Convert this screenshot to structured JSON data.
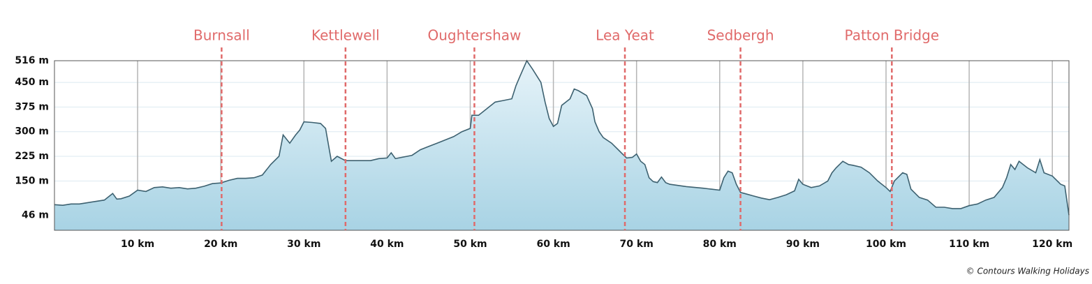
{
  "chart_data": {
    "type": "area",
    "x": [
      0,
      1,
      2,
      3,
      4,
      5,
      6,
      7,
      7.5,
      8,
      9,
      10,
      11,
      12,
      13,
      14,
      15,
      16,
      17,
      18,
      19,
      20,
      21,
      22,
      23,
      24,
      25,
      26,
      27,
      27.5,
      28.3,
      29,
      29.5,
      30,
      31,
      32,
      32.6,
      33.3,
      34,
      35,
      36,
      38,
      39,
      40,
      40.5,
      41,
      43,
      44,
      45,
      46,
      47,
      48,
      49,
      50,
      50.2,
      51,
      52,
      53,
      54,
      55,
      55.5,
      56,
      56.8,
      57.5,
      58.5,
      59,
      59.5,
      60,
      60.5,
      61,
      62,
      62.5,
      63,
      64,
      64.7,
      65,
      65.5,
      66,
      67,
      68,
      68.8,
      69.5,
      70,
      70.5,
      71,
      71.5,
      72,
      72.5,
      73,
      73.5,
      74,
      76,
      78,
      79,
      80,
      80.5,
      81,
      81.5,
      82,
      82.5,
      83,
      84,
      85,
      86,
      87,
      88,
      89,
      89.5,
      90,
      91,
      92,
      93,
      93.5,
      94,
      94.8,
      95.5,
      96,
      97,
      98,
      99,
      100,
      100.5,
      101,
      102,
      102.5,
      103,
      104,
      105,
      106,
      107,
      108,
      109,
      110,
      111,
      112,
      113,
      114,
      114.5,
      115,
      115.5,
      116,
      117,
      118,
      118.5,
      119,
      120,
      121,
      121.5,
      122
    ],
    "values": [
      78,
      76,
      80,
      80,
      84,
      88,
      92,
      112,
      95,
      96,
      104,
      122,
      118,
      130,
      132,
      128,
      130,
      126,
      128,
      134,
      142,
      144,
      152,
      158,
      158,
      160,
      168,
      200,
      225,
      290,
      265,
      290,
      305,
      330,
      328,
      325,
      310,
      210,
      225,
      212,
      212,
      212,
      218,
      220,
      236,
      218,
      228,
      245,
      255,
      265,
      275,
      285,
      300,
      310,
      350,
      350,
      370,
      390,
      395,
      400,
      440,
      470,
      516,
      490,
      450,
      390,
      340,
      316,
      325,
      380,
      400,
      430,
      425,
      410,
      370,
      330,
      300,
      282,
      265,
      240,
      220,
      222,
      232,
      210,
      200,
      160,
      148,
      145,
      162,
      145,
      140,
      133,
      128,
      125,
      122,
      160,
      180,
      175,
      140,
      115,
      112,
      105,
      98,
      93,
      100,
      108,
      120,
      155,
      140,
      130,
      135,
      150,
      175,
      190,
      210,
      200,
      198,
      192,
      175,
      150,
      130,
      118,
      150,
      175,
      170,
      125,
      100,
      92,
      70,
      70,
      66,
      66,
      75,
      80,
      92,
      100,
      130,
      160,
      200,
      185,
      210,
      190,
      175,
      215,
      175,
      165,
      140,
      135,
      46
    ],
    "color": "#3d6170",
    "xlim": [
      0,
      122
    ],
    "xticks": [
      {
        "value": 10,
        "label": "10 km"
      },
      {
        "value": 20,
        "label": "20 km"
      },
      {
        "value": 30,
        "label": "30 km"
      },
      {
        "value": 40,
        "label": "40 km"
      },
      {
        "value": 50,
        "label": "50 km"
      },
      {
        "value": 60,
        "label": "60 km"
      },
      {
        "value": 70,
        "label": "70 km"
      },
      {
        "value": 80,
        "label": "80 km"
      },
      {
        "value": 90,
        "label": "90 km"
      },
      {
        "value": 100,
        "label": "100 km"
      },
      {
        "value": 110,
        "label": "110 km"
      },
      {
        "value": 120,
        "label": "120 km"
      }
    ],
    "ylim": [
      0,
      516
    ],
    "yticks": [
      {
        "value": 46,
        "label": "46 m"
      },
      {
        "value": 150,
        "label": "150 m"
      },
      {
        "value": 225,
        "label": "225 m"
      },
      {
        "value": 300,
        "label": "300 m"
      },
      {
        "value": 375,
        "label": "375 m"
      },
      {
        "value": 450,
        "label": "450 m"
      },
      {
        "value": 516,
        "label": "516 m"
      }
    ],
    "grid": true,
    "annotations": [
      {
        "label": "Burnsall",
        "x": 20.1
      },
      {
        "label": "Kettlewell",
        "x": 35.0
      },
      {
        "label": "Oughtershaw",
        "x": 50.5
      },
      {
        "label": "Lea Yeat",
        "x": 68.6
      },
      {
        "label": "Sedbergh",
        "x": 82.5
      },
      {
        "label": "Patton Bridge",
        "x": 100.7
      }
    ],
    "annotation_color": "#e06a6a",
    "credit": "© Contours Walking Holidays"
  }
}
